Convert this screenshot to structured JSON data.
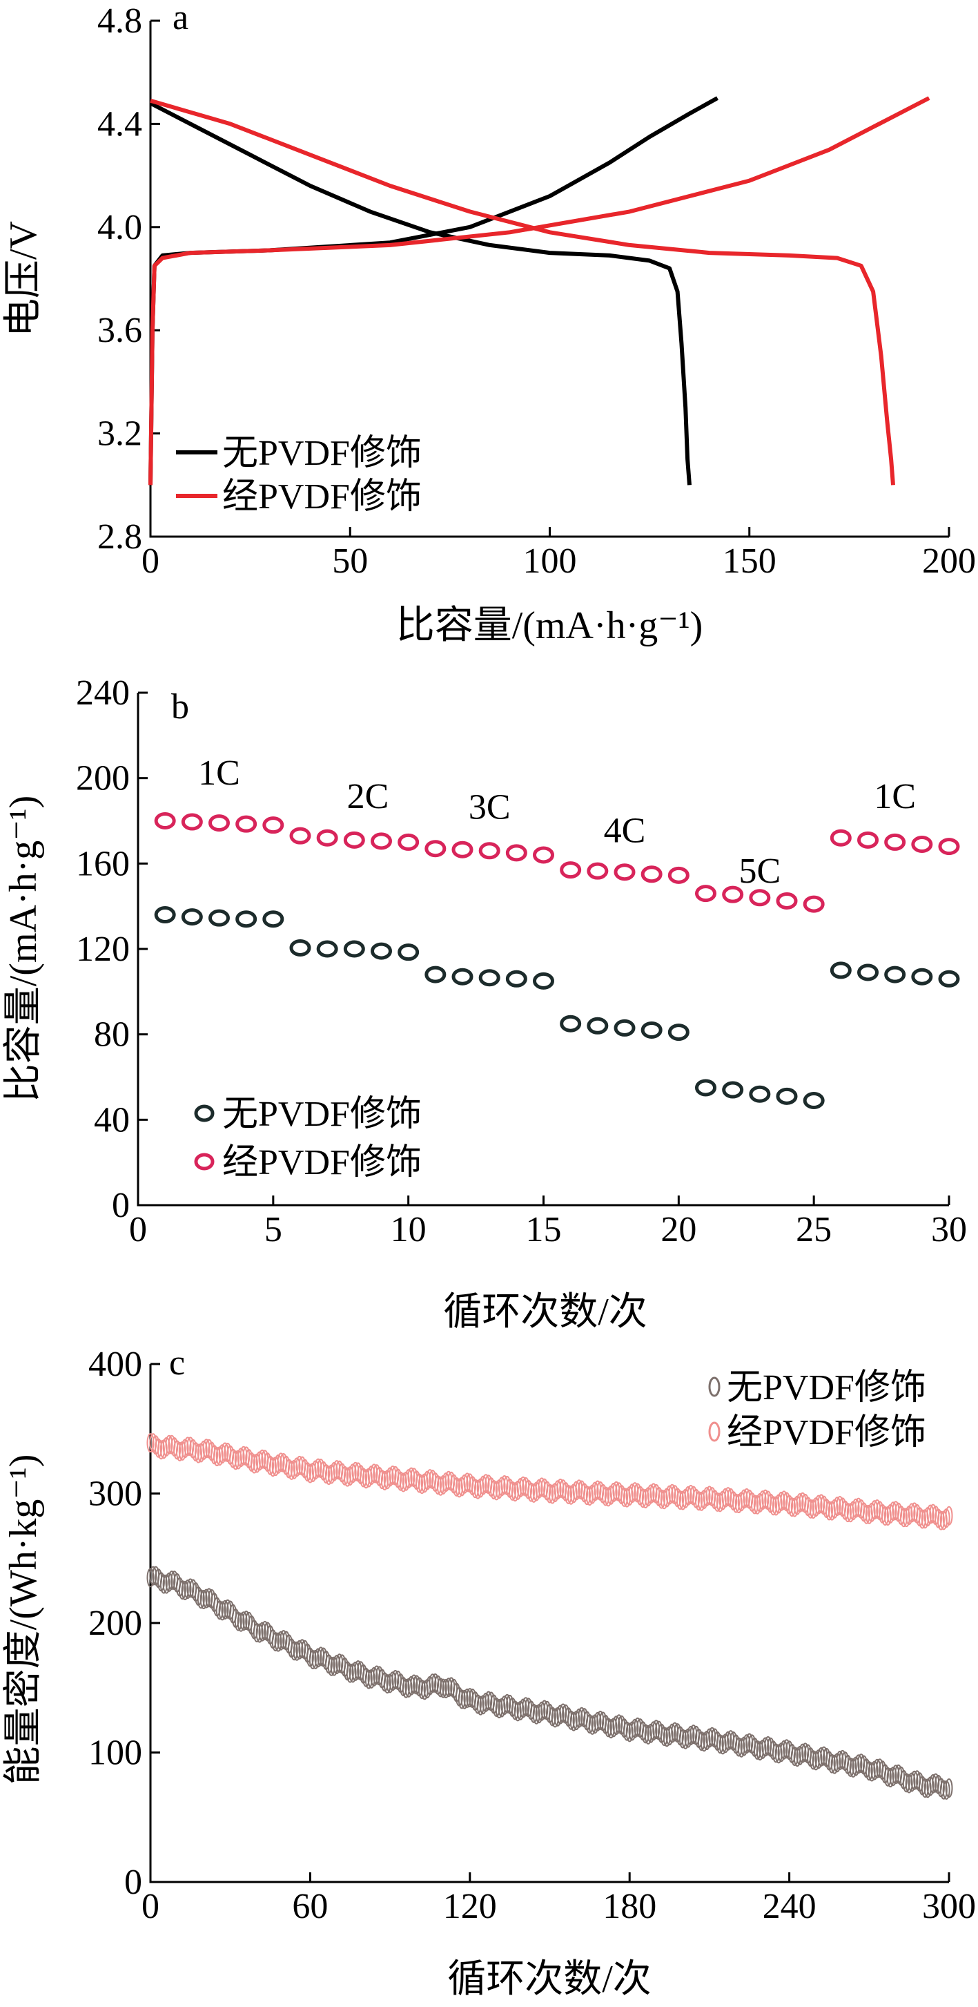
{
  "chart_data": [
    {
      "panel_label": "a",
      "type": "line",
      "xlabel": "比容量/(mA·h·g⁻¹)",
      "ylabel": "电压/V",
      "xlim": [
        0,
        200
      ],
      "ylim": [
        2.8,
        4.8
      ],
      "xticks": [
        "0",
        "50",
        "100",
        "150",
        "200"
      ],
      "yticks": [
        "2.8",
        "3.2",
        "3.6",
        "4.0",
        "4.4",
        "4.8"
      ],
      "legend_position": "bottom-left",
      "series": [
        {
          "name": "无PVDF修饰",
          "color": "#000000",
          "charge": {
            "x": [
              0,
              0.5,
              1,
              3,
              10,
              30,
              60,
              80,
              100,
              115,
              125,
              135,
              142
            ],
            "y": [
              3.0,
              3.6,
              3.85,
              3.89,
              3.9,
              3.91,
              3.94,
              4.0,
              4.12,
              4.25,
              4.35,
              4.44,
              4.5
            ]
          },
          "discharge": {
            "x": [
              0,
              10,
              25,
              40,
              55,
              70,
              85,
              100,
              115,
              125,
              130,
              132,
              133,
              134,
              134.5,
              135
            ],
            "y": [
              4.48,
              4.4,
              4.28,
              4.16,
              4.06,
              3.98,
              3.93,
              3.9,
              3.89,
              3.87,
              3.84,
              3.75,
              3.55,
              3.3,
              3.1,
              3.0
            ]
          }
        },
        {
          "name": "经PVDF修饰",
          "color": "#e8262b",
          "charge": {
            "x": [
              0,
              0.5,
              1,
              3,
              10,
              30,
              60,
              90,
              120,
              150,
              170,
              185,
              195
            ],
            "y": [
              3.0,
              3.6,
              3.85,
              3.88,
              3.9,
              3.91,
              3.93,
              3.98,
              4.06,
              4.18,
              4.3,
              4.42,
              4.5
            ]
          },
          "discharge": {
            "x": [
              0,
              20,
              40,
              60,
              80,
              100,
              120,
              140,
              160,
              172,
              178,
              181,
              183,
              184.5,
              185.5,
              186
            ],
            "y": [
              4.49,
              4.4,
              4.28,
              4.16,
              4.06,
              3.98,
              3.93,
              3.9,
              3.89,
              3.88,
              3.85,
              3.75,
              3.5,
              3.25,
              3.1,
              3.0
            ]
          }
        }
      ]
    },
    {
      "panel_label": "b",
      "type": "scatter",
      "xlabel": "循环次数/次",
      "ylabel": "比容量/(mA·h·g⁻¹)",
      "xlim": [
        0,
        30
      ],
      "ylim": [
        0,
        240
      ],
      "xticks": [
        "0",
        "5",
        "10",
        "15",
        "20",
        "25",
        "30"
      ],
      "yticks": [
        "0",
        "40",
        "80",
        "120",
        "160",
        "200",
        "240"
      ],
      "legend_position": "bottom-left",
      "rate_labels": [
        {
          "text": "1C",
          "x": 3,
          "y": 197
        },
        {
          "text": "2C",
          "x": 8.5,
          "y": 186
        },
        {
          "text": "3C",
          "x": 13,
          "y": 181
        },
        {
          "text": "4C",
          "x": 18,
          "y": 170
        },
        {
          "text": "5C",
          "x": 23,
          "y": 151
        },
        {
          "text": "1C",
          "x": 28,
          "y": 186
        }
      ],
      "series": [
        {
          "name": "无PVDF修饰",
          "color": "#1c2b2b",
          "x": [
            1,
            2,
            3,
            4,
            5,
            6,
            7,
            8,
            9,
            10,
            11,
            12,
            13,
            14,
            15,
            16,
            17,
            18,
            19,
            20,
            21,
            22,
            23,
            24,
            25,
            26,
            27,
            28,
            29,
            30
          ],
          "y": [
            136,
            135,
            134.5,
            134,
            134,
            120.5,
            120,
            120,
            119,
            118.5,
            108,
            107,
            106.5,
            106,
            105,
            85,
            84,
            83,
            82,
            81,
            55,
            54,
            52,
            51,
            49,
            110,
            109,
            108,
            107,
            106
          ]
        },
        {
          "name": "经PVDF修饰",
          "color": "#d8245a",
          "x": [
            1,
            2,
            3,
            4,
            5,
            6,
            7,
            8,
            9,
            10,
            11,
            12,
            13,
            14,
            15,
            16,
            17,
            18,
            19,
            20,
            21,
            22,
            23,
            24,
            25,
            26,
            27,
            28,
            29,
            30
          ],
          "y": [
            180,
            179.5,
            179,
            178.5,
            178,
            173,
            172,
            171,
            170.5,
            170,
            167,
            166.5,
            166,
            165,
            164,
            157,
            156.5,
            156,
            155,
            154.5,
            146,
            145.5,
            144,
            142.5,
            141,
            172,
            171,
            170,
            169,
            168
          ]
        }
      ]
    },
    {
      "panel_label": "c",
      "type": "scatter",
      "xlabel": "循环次数/次",
      "ylabel": "能量密度/(Wh·kg⁻¹)",
      "xlim": [
        0,
        300
      ],
      "ylim": [
        0,
        400
      ],
      "xticks": [
        "0",
        "60",
        "120",
        "180",
        "240",
        "300"
      ],
      "yticks": [
        "0",
        "100",
        "200",
        "300",
        "400"
      ],
      "legend_position": "top-right",
      "series": [
        {
          "name": "无PVDF修饰",
          "color": "#7d706c",
          "x": [
            0,
            10,
            20,
            40,
            60,
            80,
            100,
            110,
            120,
            150,
            180,
            210,
            240,
            270,
            290,
            300
          ],
          "y": [
            235,
            230,
            220,
            195,
            175,
            160,
            150,
            152,
            140,
            130,
            118,
            110,
            100,
            88,
            75,
            73
          ]
        },
        {
          "name": "经PVDF修饰",
          "color": "#f0908e",
          "x": [
            0,
            20,
            40,
            60,
            80,
            100,
            120,
            150,
            180,
            210,
            240,
            270,
            300
          ],
          "y": [
            337,
            333,
            325,
            318,
            314,
            310,
            306,
            302,
            299,
            296,
            292,
            286,
            281
          ]
        }
      ]
    }
  ]
}
